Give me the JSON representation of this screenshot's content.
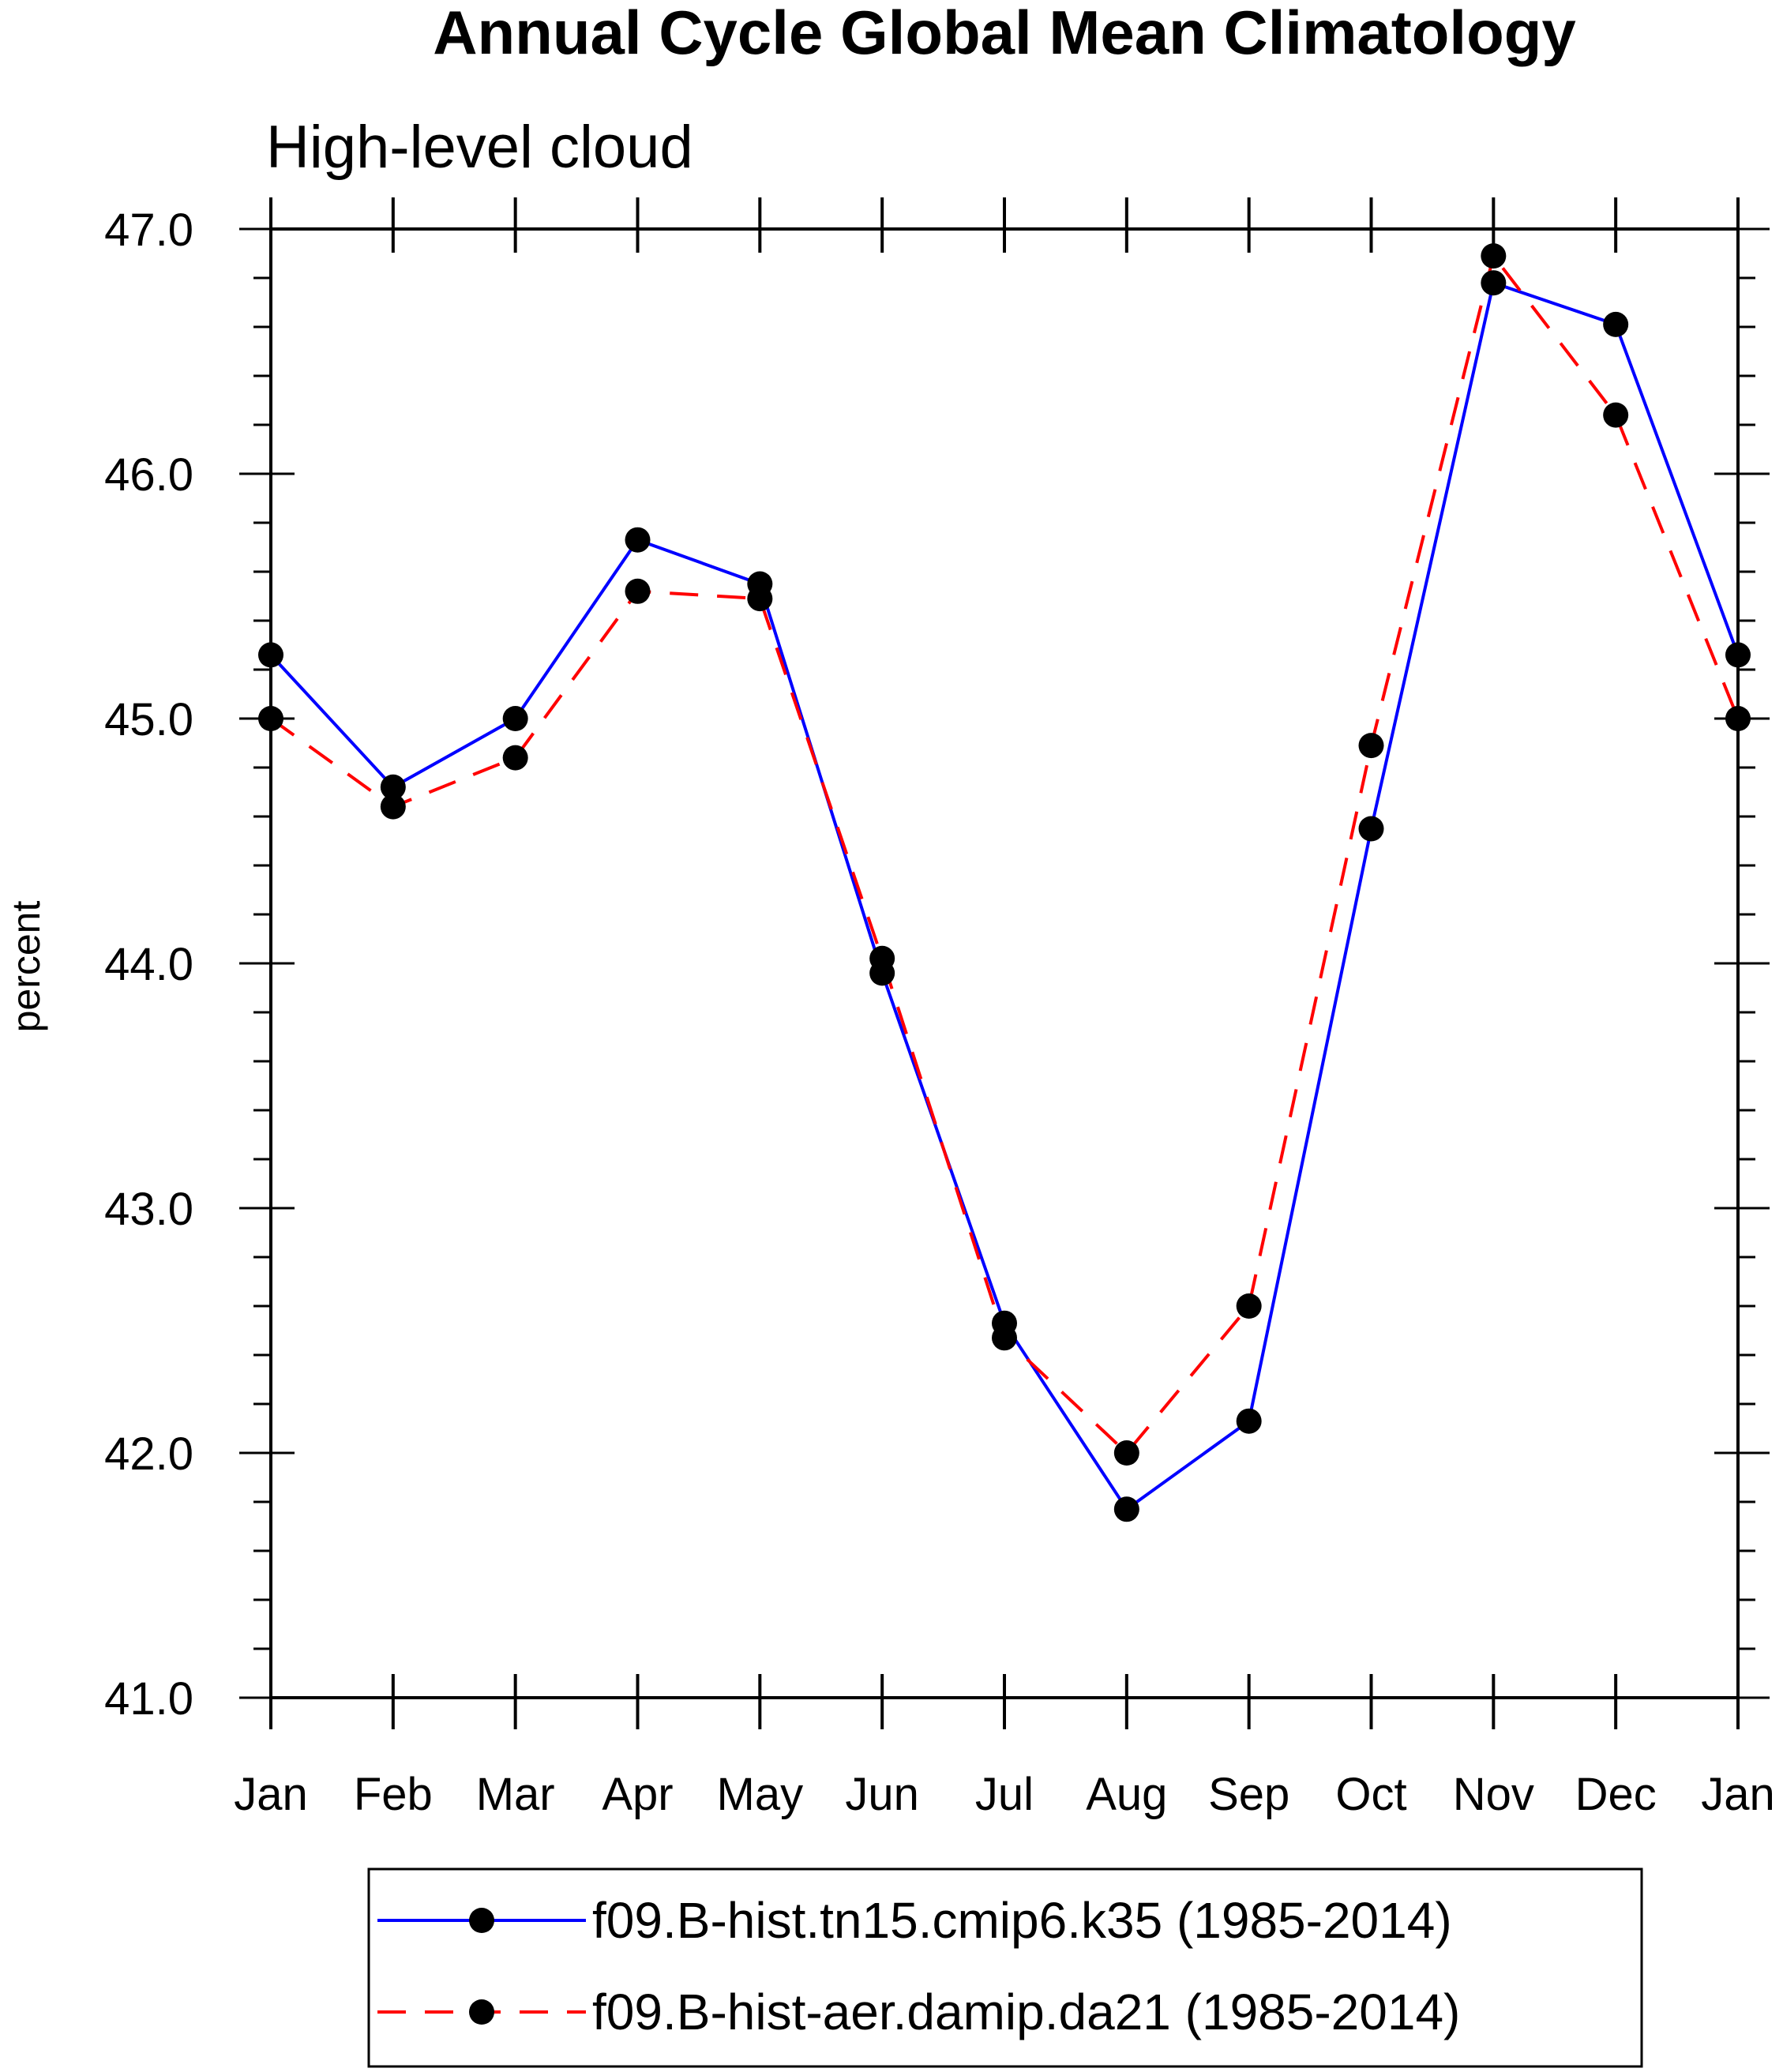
{
  "chart_data": {
    "type": "line",
    "title": "Annual Cycle Global Mean Climatology",
    "subtitle": "High-level cloud",
    "xlabel": "",
    "ylabel": "percent",
    "categories": [
      "Jan",
      "Feb",
      "Mar",
      "Apr",
      "May",
      "Jun",
      "Jul",
      "Aug",
      "Sep",
      "Oct",
      "Nov",
      "Dec",
      "Jan"
    ],
    "ylim": [
      41.0,
      47.0
    ],
    "yticks": [
      "41.0",
      "42.0",
      "43.0",
      "44.0",
      "45.0",
      "46.0",
      "47.0"
    ],
    "ytick_values": [
      41.0,
      42.0,
      43.0,
      44.0,
      45.0,
      46.0,
      47.0
    ],
    "y_minor_step": 0.2,
    "grid": false,
    "legend_position": "bottom",
    "series": [
      {
        "name": "f09.B-hist.tn15.cmip6.k35 (1985-2014)",
        "color": "#0000ff",
        "line_style": "solid",
        "marker": "filled-circle",
        "values": [
          45.26,
          44.72,
          45.0,
          45.73,
          45.55,
          43.96,
          42.53,
          41.77,
          42.13,
          44.55,
          46.78,
          46.61,
          45.26
        ]
      },
      {
        "name": "f09.B-hist-aer.damip.da21 (1985-2014)",
        "color": "#ff0000",
        "line_style": "dashed",
        "marker": "filled-circle",
        "values": [
          45.0,
          44.64,
          44.84,
          45.52,
          45.49,
          44.02,
          42.47,
          42.0,
          42.6,
          44.89,
          46.89,
          46.24,
          45.0
        ]
      }
    ]
  }
}
